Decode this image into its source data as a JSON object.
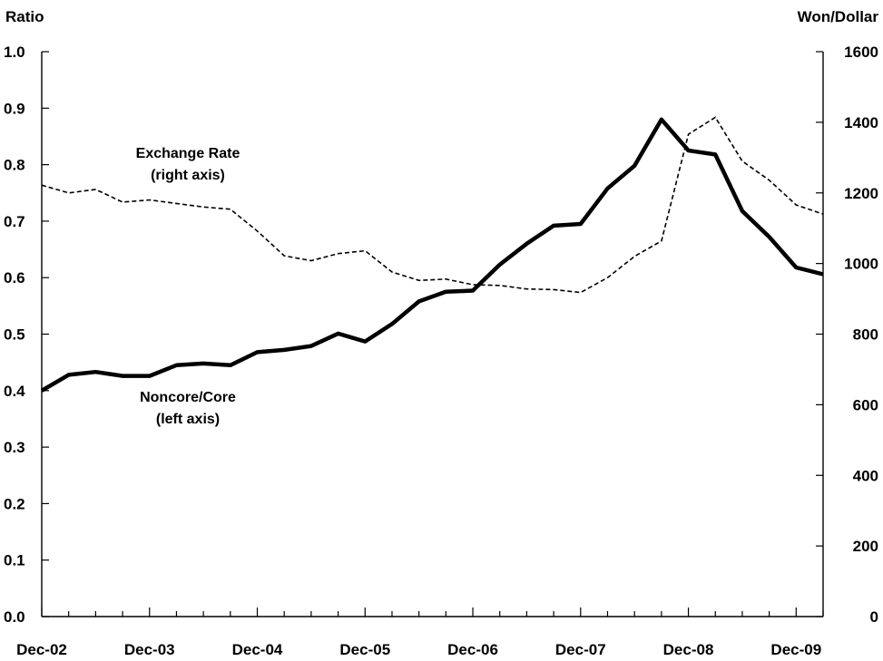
{
  "chart_data": {
    "type": "line",
    "left_axis": {
      "title": "Ratio",
      "range": [
        0,
        1
      ],
      "ticks": [
        "0.0",
        "0.1",
        "0.2",
        "0.3",
        "0.4",
        "0.5",
        "0.6",
        "0.7",
        "0.8",
        "0.9",
        "1.0"
      ]
    },
    "right_axis": {
      "title": "Won/Dollar",
      "range": [
        0,
        1600
      ],
      "ticks": [
        "0",
        "200",
        "400",
        "600",
        "800",
        "1000",
        "1200",
        "1400",
        "1600"
      ]
    },
    "x_axis": {
      "range": [
        "Dec-02",
        "Mar-10"
      ],
      "tick_labels": [
        "Dec-02",
        "Dec-03",
        "Dec-04",
        "Dec-05",
        "Dec-06",
        "Dec-07",
        "Dec-08",
        "Dec-09"
      ]
    },
    "x": [
      "Dec-02",
      "Mar-03",
      "Jun-03",
      "Sep-03",
      "Dec-03",
      "Mar-04",
      "Jun-04",
      "Sep-04",
      "Dec-04",
      "Mar-05",
      "Jun-05",
      "Sep-05",
      "Dec-05",
      "Mar-06",
      "Jun-06",
      "Sep-06",
      "Dec-06",
      "Mar-07",
      "Jun-07",
      "Sep-07",
      "Dec-07",
      "Mar-08",
      "Jun-08",
      "Sep-08",
      "Dec-08",
      "Mar-09",
      "Jun-09",
      "Sep-09",
      "Dec-09",
      "Mar-10"
    ],
    "series": [
      {
        "name": "Noncore/Core",
        "axis": "left",
        "style": "solid",
        "values": [
          0.4,
          0.428,
          0.433,
          0.426,
          0.426,
          0.445,
          0.448,
          0.445,
          0.468,
          0.472,
          0.479,
          0.501,
          0.487,
          0.518,
          0.558,
          0.575,
          0.577,
          0.623,
          0.66,
          0.692,
          0.695,
          0.758,
          0.798,
          0.88,
          0.825,
          0.818,
          0.718,
          0.672,
          0.618,
          0.606
        ]
      },
      {
        "name": "Exchange Rate",
        "axis": "right",
        "style": "dashed",
        "values": [
          1222,
          1200,
          1210,
          1174,
          1180,
          1170,
          1160,
          1154,
          1092,
          1022,
          1008,
          1028,
          1036,
          976,
          952,
          956,
          940,
          938,
          928,
          926,
          918,
          960,
          1020,
          1064,
          1366,
          1414,
          1290,
          1236,
          1166,
          1140
        ]
      }
    ],
    "annotations": [
      {
        "text": "Exchange Rate",
        "series": "Exchange Rate"
      },
      {
        "text": "(right axis)",
        "series": "Exchange Rate"
      },
      {
        "text": "Noncore/Core",
        "series": "Noncore/Core"
      },
      {
        "text": "(left axis)",
        "series": "Noncore/Core"
      }
    ],
    "grid": false,
    "legend": "none"
  }
}
